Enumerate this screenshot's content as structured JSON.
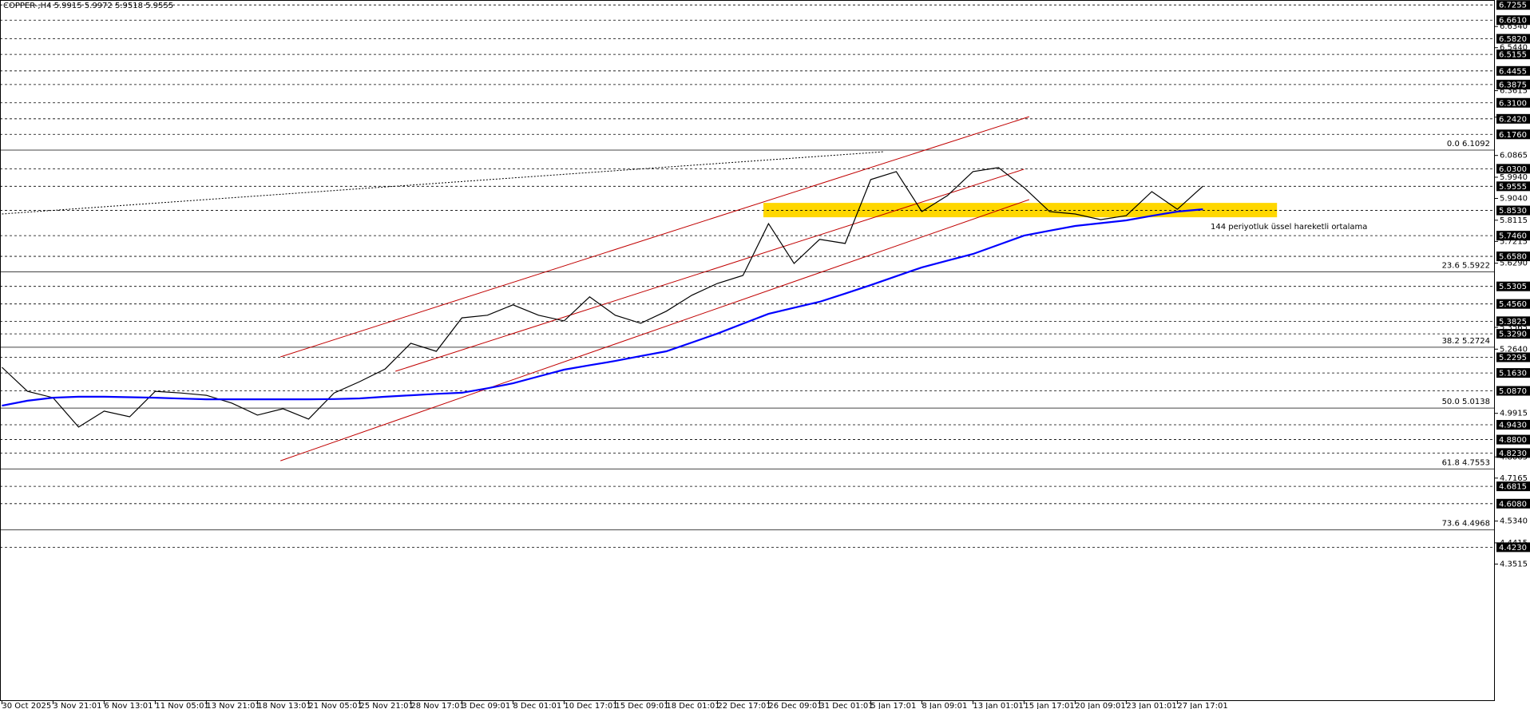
{
  "chart_data": {
    "type": "line",
    "header": "COPPER-,H4  5.9915 5.9972 5.9518 5.9555",
    "categories": [
      "30 Oct 2025",
      null,
      "3 Nov 21:01",
      null,
      "6 Nov 13:01",
      null,
      "11 Nov 05:01",
      null,
      "13 Nov 21:01",
      null,
      "18 Nov 13:01",
      null,
      "21 Nov 05:01",
      null,
      "25 Nov 21:01",
      null,
      "28 Nov 17:01",
      null,
      "3 Dec 09:01",
      null,
      "8 Dec 01:01",
      null,
      "10 Dec 17:01",
      null,
      "15 Dec 09:01",
      null,
      "18 Dec 01:01",
      null,
      "22 Dec 17:01",
      null,
      "26 Dec 09:01",
      null,
      "31 Dec 01:01",
      null,
      "5 Jan 17:01",
      null,
      "8 Jan 09:01",
      null,
      "13 Jan 01:01",
      null,
      "15 Jan 17:01",
      null,
      "20 Jan 09:01",
      null,
      "23 Jan 01:01",
      null,
      "27 Jan 17:01",
      null
    ],
    "series": [
      {
        "color": "#000000",
        "values": [
          5.187,
          5.085,
          5.058,
          4.933,
          5.001,
          4.977,
          5.085,
          5.078,
          5.068,
          5.035,
          4.984,
          5.011,
          4.967,
          5.078,
          5.126,
          5.18,
          5.289,
          5.255,
          5.397,
          5.408,
          5.452,
          5.408,
          5.384,
          5.486,
          5.408,
          5.374,
          5.425,
          5.493,
          5.543,
          5.577,
          5.797,
          5.628,
          5.73,
          5.713,
          5.984,
          6.018,
          5.848,
          5.916,
          6.018,
          6.035,
          5.95,
          5.848,
          5.838,
          5.814,
          5.831,
          5.933,
          5.858,
          5.956
        ]
      },
      {
        "color": "#0000ff",
        "values": [
          5.024,
          5.045,
          5.058,
          5.062,
          5.062,
          5.06,
          5.058,
          5.054,
          5.051,
          5.051,
          5.051,
          5.051,
          5.051,
          5.052,
          5.055,
          5.062,
          5.068,
          5.074,
          5.079,
          5.098,
          5.119,
          5.148,
          5.177,
          5.196,
          5.214,
          5.235,
          5.255,
          5.292,
          5.33,
          5.372,
          5.414,
          5.44,
          5.465,
          5.5,
          5.536,
          5.574,
          5.611,
          5.64,
          5.668,
          5.707,
          5.746,
          5.767,
          5.787,
          5.799,
          5.811,
          5.83,
          5.848,
          5.858
        ]
      }
    ],
    "ylim": [
      3.77,
      6.7465
    ],
    "yticks": [
      {
        "value": 6.634,
        "label": "6.6340"
      },
      {
        "value": 6.544,
        "label": "6.5440"
      },
      6.3615,
      {
        "value": 6.249,
        "label": "6.2490"
      },
      6.0865,
      {
        "value": 5.994,
        "label": "5.9940"
      },
      {
        "value": 5.904,
        "label": "5.9040"
      },
      5.8115,
      5.7215,
      {
        "value": 5.629,
        "label": "5.6290"
      },
      5.3565,
      {
        "value": 5.264,
        "label": "5.2640"
      },
      4.9915,
      4.8065,
      4.7165,
      {
        "value": 4.534,
        "label": "4.5340"
      },
      4.4415,
      4.3515
    ],
    "levels": [
      6.7255,
      {
        "value": 6.661,
        "label": "6.6610"
      },
      {
        "value": 6.582,
        "label": "6.5820"
      },
      6.5155,
      6.4455,
      6.3875,
      {
        "value": 6.31,
        "label": "6.3100"
      },
      {
        "value": 6.242,
        "label": "6.2420"
      },
      {
        "value": 6.176,
        "label": "6.1760"
      },
      {
        "value": 6.03,
        "label": "6.0300"
      },
      5.9555,
      {
        "value": 5.853,
        "label": "5.8530"
      },
      {
        "value": 5.746,
        "label": "5.7460"
      },
      {
        "value": 5.658,
        "label": "5.6580"
      },
      5.5305,
      {
        "value": 5.456,
        "label": "5.4560"
      },
      5.3825,
      {
        "value": 5.329,
        "label": "5.3290"
      },
      5.2295,
      {
        "value": 5.163,
        "label": "5.1630"
      },
      {
        "value": 5.087,
        "label": "5.0870"
      },
      {
        "value": 4.943,
        "label": "4.9430"
      },
      {
        "value": 4.88,
        "label": "4.8800"
      },
      {
        "value": 4.823,
        "label": "4.8230"
      },
      4.6815,
      {
        "value": 4.608,
        "label": "4.6080"
      },
      {
        "value": 4.423,
        "label": "4.4230"
      }
    ],
    "fib": [
      {
        "value": 6.1092,
        "label": "0.0 6.1092"
      },
      {
        "value": 5.5922,
        "label": "23.6 5.5922"
      },
      {
        "value": 5.2724,
        "label": "38.2 5.2724"
      },
      {
        "value": 5.0138,
        "label": "50.0 5.0138"
      },
      {
        "value": 4.7553,
        "label": "61.8 4.7553"
      },
      {
        "value": 4.4968,
        "label": "73.6 4.4968"
      }
    ],
    "trendlines": [
      {
        "color": "#c00000",
        "dash": false,
        "from": [
          10.9,
          5.231
        ],
        "to": [
          40.2,
          6.251
        ]
      },
      {
        "color": "#c00000",
        "dash": false,
        "from": [
          10.9,
          4.79
        ],
        "to": [
          40.2,
          5.899
        ]
      },
      {
        "color": "#c00000",
        "dash": false,
        "from": [
          15.4,
          5.17
        ],
        "to": [
          40,
          6.028
        ]
      },
      {
        "color": "#000000",
        "dash": true,
        "from": [
          0,
          5.838
        ],
        "to": [
          34.5,
          6.102
        ]
      }
    ],
    "zone": {
      "color": "#ffd700",
      "from": 29.8,
      "to": 49.9,
      "top": 5.885,
      "bottom": 5.824
    },
    "annotation": {
      "text": "144 periyotluk üssel hareketli ortalama",
      "color": "#1a1aff"
    }
  }
}
